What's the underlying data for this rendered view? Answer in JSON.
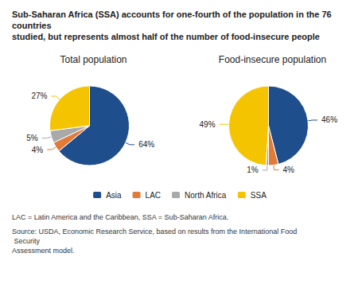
{
  "chart_data": {
    "type": "pie",
    "title": "Sub-Saharan Africa (SSA) accounts for one-fourth of the population in the 76 countries\nstudied, but represents almost half of the number of food-insecure people",
    "categories": [
      "Asia",
      "LAC",
      "North Africa",
      "SSA"
    ],
    "colors": [
      "#1f4e8c",
      "#e07b39",
      "#a9a9a9",
      "#f5c400"
    ],
    "series": [
      {
        "name": "Total population",
        "values": [
          64,
          4,
          5,
          27
        ],
        "value_labels": [
          "64%",
          "4%",
          "5%",
          "27%"
        ]
      },
      {
        "name": "Food-insecure population",
        "values": [
          46,
          4,
          1,
          49
        ],
        "value_labels": [
          "46%",
          "4%",
          "1%",
          "49%"
        ]
      }
    ],
    "annotations": [
      "LAC = Latin America and the Caribbean, SSA = Sub-Saharan Africa.",
      "Source: USDA, Economic Research Service, based on results from the International Food Security\nAssessment model."
    ],
    "legend": "bottom",
    "data_labels": true
  }
}
